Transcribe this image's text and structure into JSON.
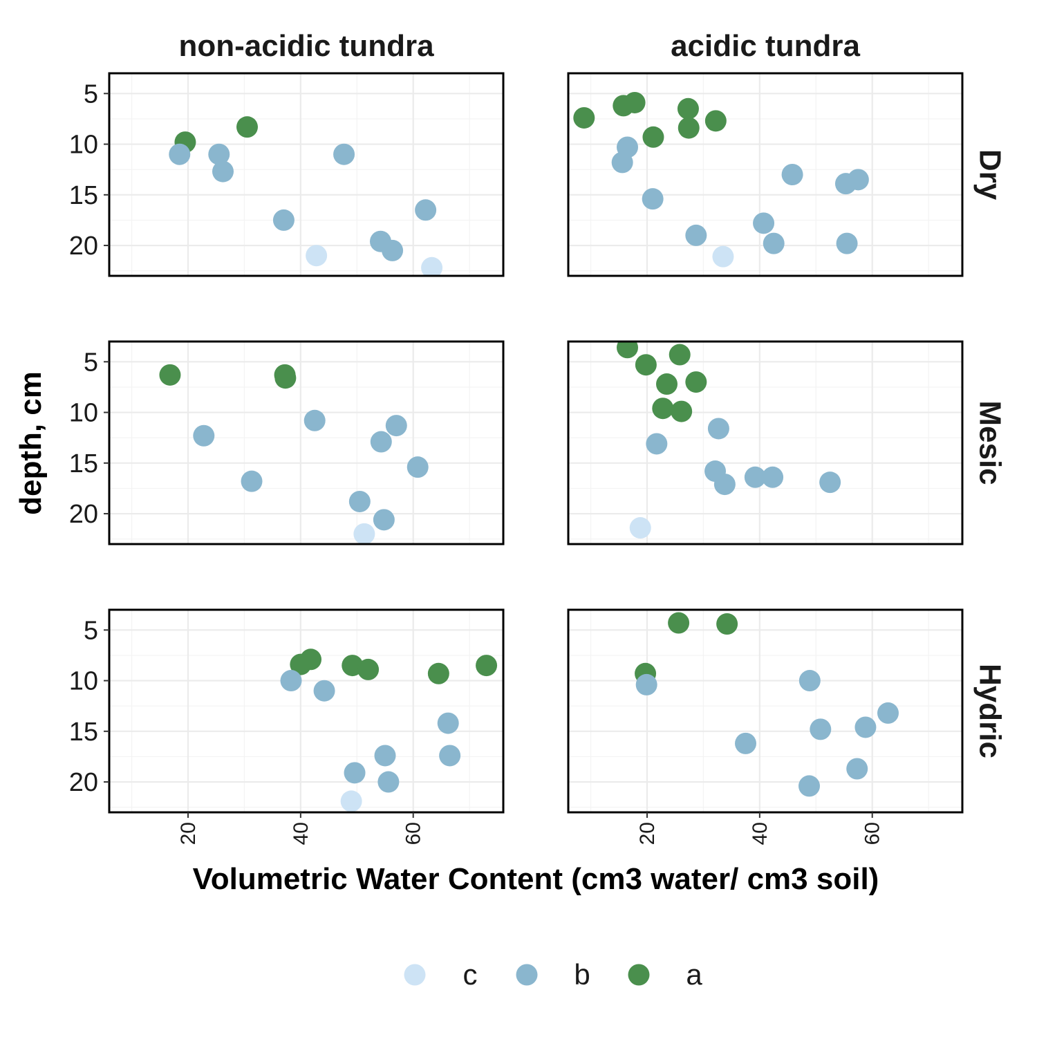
{
  "chart_data": {
    "type": "scatter",
    "xlabel": "Volumetric Water Content (cm3 water/ cm3 soil)",
    "ylabel": "depth, cm",
    "xlim": [
      6,
      76
    ],
    "ylim": [
      23,
      3
    ],
    "y_reversed": true,
    "x_ticks": [
      20,
      40,
      60
    ],
    "y_ticks": [
      5,
      10,
      15,
      20
    ],
    "grid": true,
    "columns": [
      "non-acidic tundra",
      "acidic tundra"
    ],
    "rows": [
      "Dry",
      "Mesic",
      "Hydric"
    ],
    "legend": {
      "position": "bottom",
      "entries": [
        {
          "label": "c",
          "color": "#cde3f5"
        },
        {
          "label": "b",
          "color": "#8ab6ce"
        },
        {
          "label": "a",
          "color": "#4a8f4d"
        }
      ]
    },
    "panels": [
      {
        "row": "Dry",
        "col": "non-acidic tundra",
        "points": [
          {
            "x": 19.5,
            "y": 9.8,
            "g": "a"
          },
          {
            "x": 30.5,
            "y": 8.3,
            "g": "a"
          },
          {
            "x": 18.5,
            "y": 11.0,
            "g": "b"
          },
          {
            "x": 25.5,
            "y": 11.0,
            "g": "b"
          },
          {
            "x": 26.2,
            "y": 12.7,
            "g": "b"
          },
          {
            "x": 47.7,
            "y": 11.0,
            "g": "b"
          },
          {
            "x": 37.0,
            "y": 17.5,
            "g": "b"
          },
          {
            "x": 62.2,
            "y": 16.5,
            "g": "b"
          },
          {
            "x": 54.2,
            "y": 19.6,
            "g": "b"
          },
          {
            "x": 56.3,
            "y": 20.5,
            "g": "b"
          },
          {
            "x": 42.8,
            "y": 21.0,
            "g": "c"
          },
          {
            "x": 63.3,
            "y": 22.2,
            "g": "c"
          }
        ]
      },
      {
        "row": "Dry",
        "col": "acidic tundra",
        "points": [
          {
            "x": 8.8,
            "y": 7.4,
            "g": "a"
          },
          {
            "x": 15.8,
            "y": 6.2,
            "g": "a"
          },
          {
            "x": 17.8,
            "y": 5.9,
            "g": "a"
          },
          {
            "x": 27.3,
            "y": 6.5,
            "g": "a"
          },
          {
            "x": 32.2,
            "y": 7.7,
            "g": "a"
          },
          {
            "x": 21.1,
            "y": 9.3,
            "g": "a"
          },
          {
            "x": 27.4,
            "y": 8.4,
            "g": "a"
          },
          {
            "x": 16.5,
            "y": 10.3,
            "g": "b"
          },
          {
            "x": 15.6,
            "y": 11.8,
            "g": "b"
          },
          {
            "x": 21.0,
            "y": 15.4,
            "g": "b"
          },
          {
            "x": 45.8,
            "y": 13.0,
            "g": "b"
          },
          {
            "x": 55.3,
            "y": 13.9,
            "g": "b"
          },
          {
            "x": 57.5,
            "y": 13.5,
            "g": "b"
          },
          {
            "x": 40.7,
            "y": 17.8,
            "g": "b"
          },
          {
            "x": 28.7,
            "y": 19.0,
            "g": "b"
          },
          {
            "x": 42.5,
            "y": 19.8,
            "g": "b"
          },
          {
            "x": 55.5,
            "y": 19.8,
            "g": "b"
          },
          {
            "x": 33.5,
            "y": 21.1,
            "g": "c"
          }
        ]
      },
      {
        "row": "Mesic",
        "col": "non-acidic tundra",
        "points": [
          {
            "x": 16.8,
            "y": 6.3,
            "g": "a"
          },
          {
            "x": 37.2,
            "y": 6.3,
            "g": "a"
          },
          {
            "x": 37.3,
            "y": 6.6,
            "g": "a"
          },
          {
            "x": 42.5,
            "y": 10.8,
            "g": "b"
          },
          {
            "x": 22.8,
            "y": 12.3,
            "g": "b"
          },
          {
            "x": 57.0,
            "y": 11.3,
            "g": "b"
          },
          {
            "x": 54.3,
            "y": 12.9,
            "g": "b"
          },
          {
            "x": 60.8,
            "y": 15.4,
            "g": "b"
          },
          {
            "x": 31.3,
            "y": 16.8,
            "g": "b"
          },
          {
            "x": 50.5,
            "y": 18.8,
            "g": "b"
          },
          {
            "x": 54.8,
            "y": 20.6,
            "g": "b"
          },
          {
            "x": 51.3,
            "y": 22.0,
            "g": "c"
          }
        ]
      },
      {
        "row": "Mesic",
        "col": "acidic tundra",
        "points": [
          {
            "x": 16.5,
            "y": 3.6,
            "g": "a"
          },
          {
            "x": 25.8,
            "y": 4.3,
            "g": "a"
          },
          {
            "x": 19.8,
            "y": 5.3,
            "g": "a"
          },
          {
            "x": 23.5,
            "y": 7.2,
            "g": "a"
          },
          {
            "x": 28.7,
            "y": 7.0,
            "g": "a"
          },
          {
            "x": 22.8,
            "y": 9.6,
            "g": "a"
          },
          {
            "x": 26.1,
            "y": 9.9,
            "g": "a"
          },
          {
            "x": 32.7,
            "y": 11.6,
            "g": "b"
          },
          {
            "x": 21.7,
            "y": 13.1,
            "g": "b"
          },
          {
            "x": 32.1,
            "y": 15.8,
            "g": "b"
          },
          {
            "x": 33.8,
            "y": 17.1,
            "g": "b"
          },
          {
            "x": 39.2,
            "y": 16.4,
            "g": "b"
          },
          {
            "x": 42.3,
            "y": 16.4,
            "g": "b"
          },
          {
            "x": 52.5,
            "y": 16.9,
            "g": "b"
          },
          {
            "x": 18.8,
            "y": 21.4,
            "g": "c"
          }
        ]
      },
      {
        "row": "Hydric",
        "col": "non-acidic tundra",
        "points": [
          {
            "x": 40.0,
            "y": 8.4,
            "g": "a"
          },
          {
            "x": 41.8,
            "y": 7.9,
            "g": "a"
          },
          {
            "x": 49.2,
            "y": 8.5,
            "g": "a"
          },
          {
            "x": 52.0,
            "y": 8.9,
            "g": "a"
          },
          {
            "x": 64.5,
            "y": 9.3,
            "g": "a"
          },
          {
            "x": 73.0,
            "y": 8.5,
            "g": "a"
          },
          {
            "x": 38.3,
            "y": 10.0,
            "g": "b"
          },
          {
            "x": 44.2,
            "y": 11.0,
            "g": "b"
          },
          {
            "x": 66.2,
            "y": 14.2,
            "g": "b"
          },
          {
            "x": 55.0,
            "y": 17.4,
            "g": "b"
          },
          {
            "x": 66.5,
            "y": 17.4,
            "g": "b"
          },
          {
            "x": 49.6,
            "y": 19.1,
            "g": "b"
          },
          {
            "x": 55.6,
            "y": 20.0,
            "g": "b"
          },
          {
            "x": 49.0,
            "y": 21.9,
            "g": "c"
          }
        ]
      },
      {
        "row": "Hydric",
        "col": "acidic tundra",
        "points": [
          {
            "x": 25.6,
            "y": 4.3,
            "g": "a"
          },
          {
            "x": 34.2,
            "y": 4.4,
            "g": "a"
          },
          {
            "x": 19.7,
            "y": 9.3,
            "g": "a"
          },
          {
            "x": 19.9,
            "y": 10.4,
            "g": "b"
          },
          {
            "x": 48.9,
            "y": 10.0,
            "g": "b"
          },
          {
            "x": 62.8,
            "y": 13.2,
            "g": "b"
          },
          {
            "x": 58.8,
            "y": 14.6,
            "g": "b"
          },
          {
            "x": 50.8,
            "y": 14.8,
            "g": "b"
          },
          {
            "x": 37.5,
            "y": 16.2,
            "g": "b"
          },
          {
            "x": 57.3,
            "y": 18.7,
            "g": "b"
          },
          {
            "x": 48.8,
            "y": 20.4,
            "g": "b"
          }
        ]
      }
    ]
  }
}
